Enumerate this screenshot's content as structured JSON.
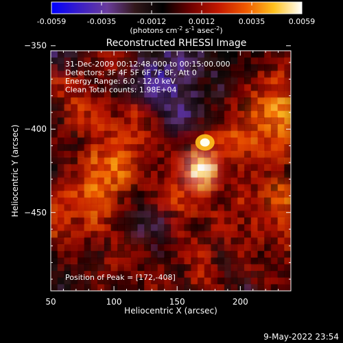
{
  "chart_data": {
    "type": "heatmap",
    "title": "Reconstructed RHESSI Image",
    "xlabel": "Heliocentric X (arcsec)",
    "ylabel": "Heliocentric Y (arcsec)",
    "xlim": [
      50,
      240
    ],
    "ylim": [
      -497,
      -353
    ],
    "x_ticks": [
      50,
      100,
      150,
      200
    ],
    "y_ticks": [
      -350,
      -400,
      -450
    ],
    "colorbar": {
      "range": [
        -0.0059,
        0.0059
      ],
      "ticks": [
        "-0.0059",
        "-0.0035",
        "-0.0012",
        "0.0012",
        "0.0035",
        "0.0059"
      ],
      "unit_label": "(photons cm",
      "unit_exp1": "-2",
      "unit_mid": " s",
      "unit_exp2": "-1",
      "unit_mid2": " asec",
      "unit_exp3": "-2",
      "unit_end": ")"
    },
    "annotations": [
      "31-Dec-2009 00:12:48.000 to 00:15:00.000",
      "Detectors: 3F 4F 5F 6F 7F 8F, Att 0",
      "Energy Range: 6.0 - 12.0 keV",
      "Clean     Total counts: 1.98E+04"
    ],
    "peak_label": "Position of Peak = [172,-408]",
    "peak": {
      "x": 172,
      "y": -408
    },
    "timestamp": "9-May-2022 23:54",
    "field_cols": 12,
    "field_rows": 9,
    "field_values": [
      [
        -0.4,
        -0.3,
        0.2,
        0.3,
        -0.2,
        -0.3,
        -0.5,
        -0.3,
        -0.2,
        -0.1,
        0.0,
        0.2
      ],
      [
        0.3,
        0.2,
        0.0,
        -0.2,
        -0.4,
        -0.7,
        -0.4,
        -0.2,
        -0.3,
        0.1,
        0.3,
        0.4
      ],
      [
        -0.2,
        0.4,
        0.3,
        0.1,
        0.3,
        -0.2,
        -0.5,
        -0.3,
        0.1,
        0.2,
        0.6,
        0.7
      ],
      [
        0.1,
        -0.1,
        0.3,
        0.4,
        0.3,
        0.2,
        0.0,
        0.2,
        0.4,
        0.5,
        0.3,
        0.5
      ],
      [
        -0.2,
        0.2,
        0.5,
        0.6,
        0.2,
        0.1,
        0.3,
        1.0,
        0.3,
        0.1,
        0.2,
        0.1
      ],
      [
        0.3,
        0.4,
        0.6,
        0.2,
        -0.1,
        0.2,
        0.4,
        0.3,
        0.1,
        0.3,
        0.2,
        0.6
      ],
      [
        0.4,
        0.2,
        0.3,
        0.1,
        -0.3,
        -0.4,
        0.2,
        -0.1,
        0.3,
        0.1,
        0.3,
        0.3
      ],
      [
        0.0,
        0.1,
        -0.2,
        0.3,
        0.2,
        -0.1,
        0.1,
        0.3,
        -0.3,
        0.2,
        -0.1,
        0.2
      ],
      [
        -0.3,
        -0.2,
        0.2,
        -0.1,
        0.0,
        0.2,
        -0.2,
        0.3,
        0.1,
        -0.3,
        0.2,
        0.1
      ]
    ],
    "colors": [
      "#0000ff",
      "#3a1ec8",
      "#6a3c9c",
      "#32181a",
      "#000000",
      "#6e0000",
      "#c21800",
      "#f05a00",
      "#ffc21e",
      "#ffffff"
    ]
  }
}
